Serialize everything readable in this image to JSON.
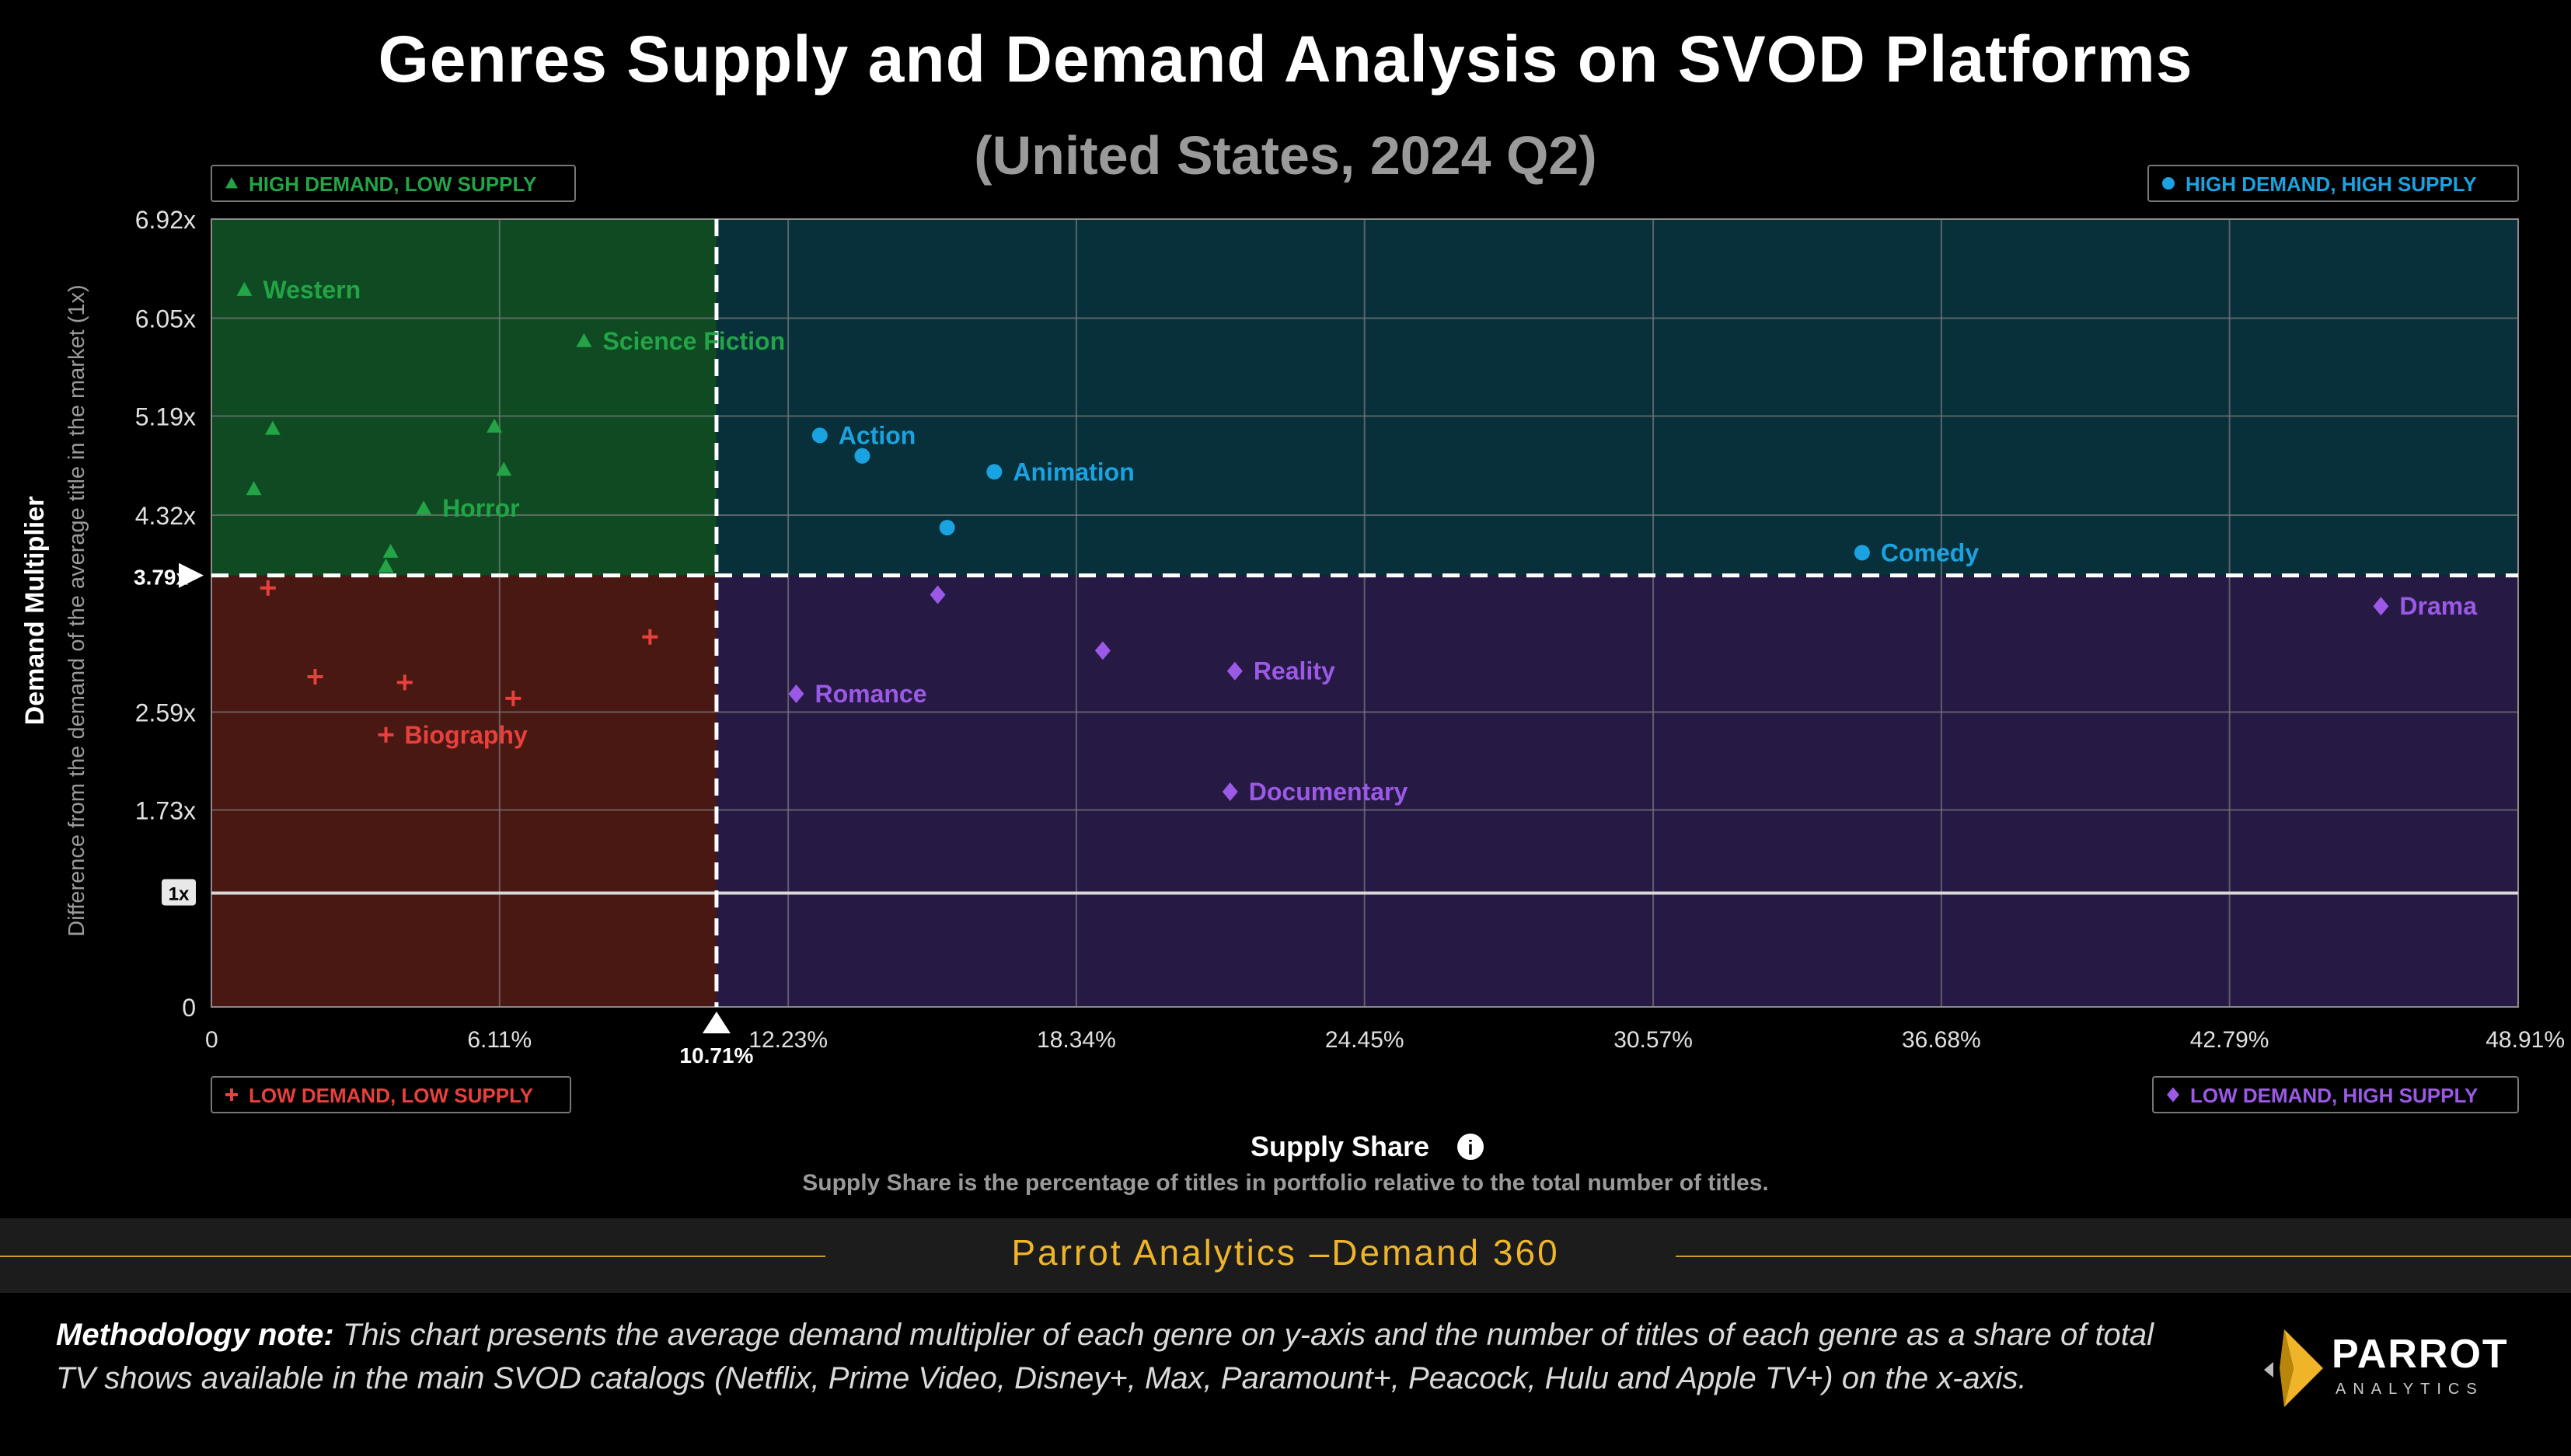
{
  "header": {
    "title": "Genres Supply and Demand Analysis on SVOD Platforms",
    "subtitle": "(United States, 2024 Q2)"
  },
  "chart_data": {
    "type": "scatter",
    "title": "Genres Supply and Demand Analysis on SVOD Platforms",
    "subtitle": "(United States, 2024 Q2)",
    "xlabel": "Supply Share",
    "xlabel_note": "Supply Share is the percentage of titles in portfolio relative to the total number of titles.",
    "ylabel": "Demand Multiplier",
    "ylabel_sub": "Difference from the demand of the average title in the market (1x)",
    "xlim": [
      0,
      48.91
    ],
    "ylim": [
      0,
      6.92
    ],
    "x_ticks": [
      0,
      6.11,
      12.23,
      18.34,
      24.45,
      30.57,
      36.68,
      42.79,
      48.91
    ],
    "x_tick_labels": [
      "0",
      "6.11%",
      "12.23%",
      "18.34%",
      "24.45%",
      "30.57%",
      "36.68%",
      "42.79%",
      "48.91%"
    ],
    "y_ticks": [
      0,
      1.73,
      2.59,
      4.32,
      5.19,
      6.05,
      6.92
    ],
    "y_tick_labels": [
      "0",
      "1.73x",
      "2.59x",
      "4.32x",
      "5.19x",
      "6.05x",
      "6.92x"
    ],
    "reference_lines": {
      "x_mean": 10.71,
      "x_mean_label": "10.71%",
      "y_mean": 3.79,
      "y_mean_label": "3.79x",
      "y_baseline": 1.0,
      "y_baseline_label": "1x"
    },
    "quadrants": {
      "high_demand_low_supply": {
        "label": "HIGH DEMAND, LOW SUPPLY",
        "color": "#22a447",
        "marker": "triangle"
      },
      "high_demand_high_supply": {
        "label": "HIGH DEMAND, HIGH SUPPLY",
        "color": "#1aa3e0",
        "marker": "circle"
      },
      "low_demand_low_supply": {
        "label": "LOW DEMAND, LOW SUPPLY",
        "color": "#e8403c",
        "marker": "plus"
      },
      "low_demand_high_supply": {
        "label": "LOW DEMAND, HIGH SUPPLY",
        "color": "#9b59e6",
        "marker": "diamond"
      }
    },
    "points": [
      {
        "x": 0.7,
        "y": 6.3,
        "group": "high_demand_low_supply",
        "label": "Western"
      },
      {
        "x": 7.9,
        "y": 5.85,
        "group": "high_demand_low_supply",
        "label": "Science Fiction"
      },
      {
        "x": 1.3,
        "y": 5.08,
        "group": "high_demand_low_supply",
        "label": ""
      },
      {
        "x": 6.0,
        "y": 5.1,
        "group": "high_demand_low_supply",
        "label": ""
      },
      {
        "x": 0.9,
        "y": 4.55,
        "group": "high_demand_low_supply",
        "label": ""
      },
      {
        "x": 6.2,
        "y": 4.72,
        "group": "high_demand_low_supply",
        "label": ""
      },
      {
        "x": 4.5,
        "y": 4.38,
        "group": "high_demand_low_supply",
        "label": "Horror"
      },
      {
        "x": 3.8,
        "y": 4.0,
        "group": "high_demand_low_supply",
        "label": ""
      },
      {
        "x": 3.7,
        "y": 3.87,
        "group": "high_demand_low_supply",
        "label": ""
      },
      {
        "x": 12.9,
        "y": 5.02,
        "group": "high_demand_high_supply",
        "label": "Action"
      },
      {
        "x": 13.8,
        "y": 4.84,
        "group": "high_demand_high_supply",
        "label": ""
      },
      {
        "x": 16.6,
        "y": 4.7,
        "group": "high_demand_high_supply",
        "label": "Animation"
      },
      {
        "x": 15.6,
        "y": 4.21,
        "group": "high_demand_high_supply",
        "label": ""
      },
      {
        "x": 35.0,
        "y": 3.99,
        "group": "high_demand_high_supply",
        "label": "Comedy"
      },
      {
        "x": 1.2,
        "y": 3.68,
        "group": "low_demand_low_supply",
        "label": ""
      },
      {
        "x": 9.3,
        "y": 3.25,
        "group": "low_demand_low_supply",
        "label": ""
      },
      {
        "x": 2.2,
        "y": 2.9,
        "group": "low_demand_low_supply",
        "label": ""
      },
      {
        "x": 4.1,
        "y": 2.85,
        "group": "low_demand_low_supply",
        "label": ""
      },
      {
        "x": 6.4,
        "y": 2.71,
        "group": "low_demand_low_supply",
        "label": ""
      },
      {
        "x": 3.7,
        "y": 2.39,
        "group": "low_demand_low_supply",
        "label": "Biography"
      },
      {
        "x": 15.4,
        "y": 3.62,
        "group": "low_demand_high_supply",
        "label": ""
      },
      {
        "x": 46.0,
        "y": 3.52,
        "group": "low_demand_high_supply",
        "label": "Drama"
      },
      {
        "x": 18.9,
        "y": 3.13,
        "group": "low_demand_high_supply",
        "label": ""
      },
      {
        "x": 21.7,
        "y": 2.95,
        "group": "low_demand_high_supply",
        "label": "Reality"
      },
      {
        "x": 12.4,
        "y": 2.75,
        "group": "low_demand_high_supply",
        "label": "Romance"
      },
      {
        "x": 21.6,
        "y": 1.89,
        "group": "low_demand_high_supply",
        "label": "Documentary"
      }
    ]
  },
  "footer": {
    "brand_line": "Parrot Analytics –Demand 360",
    "note_bold": "Methodology note:",
    "note_text": " This chart presents the average demand multiplier of each genre on y-axis and the number of titles of each genre as a share of total TV shows available in the main SVOD catalogs (Netflix, Prime Video, Disney+, Max, Paramount+, Peacock, Hulu and Apple TV+) on the x-axis.",
    "logo_word": "PARROT",
    "logo_sub": "ANALYTICS"
  },
  "colors": {
    "green": "#22a447",
    "blue": "#1aa3e0",
    "red": "#e8403c",
    "purple": "#9b59e6",
    "gold": "#f0b429"
  }
}
